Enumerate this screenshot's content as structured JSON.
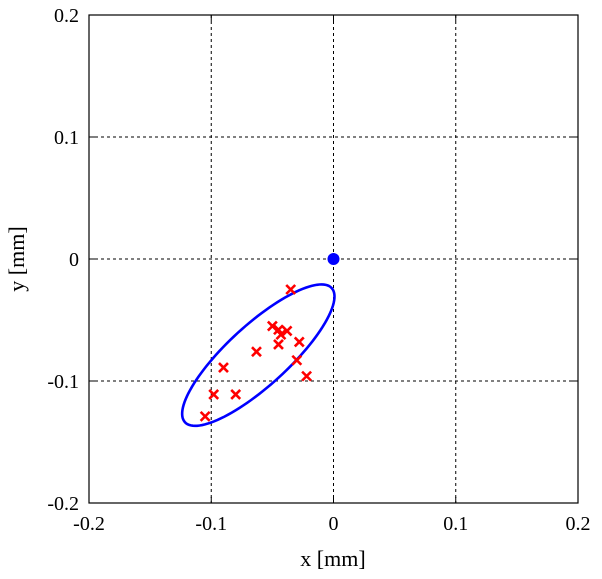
{
  "chart_data": {
    "type": "scatter",
    "xlabel": "x [mm]",
    "ylabel": "y [mm]",
    "xlim": [
      -0.2,
      0.2
    ],
    "ylim": [
      -0.2,
      0.2
    ],
    "grid": true,
    "x_ticks": [
      "-0.2",
      "-0.1",
      "0",
      "0.1",
      "0.2"
    ],
    "y_ticks": [
      "-0.2",
      "-0.1",
      "0",
      "0.1",
      "0.2"
    ],
    "series": [
      {
        "marker": "x",
        "color": "#ff0000",
        "points": [
          {
            "x": -0.035,
            "y": -0.025
          },
          {
            "x": -0.05,
            "y": -0.055
          },
          {
            "x": -0.045,
            "y": -0.058
          },
          {
            "x": -0.043,
            "y": -0.062
          },
          {
            "x": -0.038,
            "y": -0.059
          },
          {
            "x": -0.063,
            "y": -0.076
          },
          {
            "x": -0.045,
            "y": -0.07
          },
          {
            "x": -0.028,
            "y": -0.068
          },
          {
            "x": -0.03,
            "y": -0.083
          },
          {
            "x": -0.022,
            "y": -0.096
          },
          {
            "x": -0.09,
            "y": -0.089
          },
          {
            "x": -0.098,
            "y": -0.111
          },
          {
            "x": -0.08,
            "y": -0.111
          },
          {
            "x": -0.105,
            "y": -0.129
          }
        ]
      },
      {
        "marker": "filled-circle",
        "color": "#0000ff",
        "points": [
          {
            "x": 0.0,
            "y": 0.0
          }
        ]
      }
    ],
    "ellipse": {
      "color": "#0000ff",
      "center": [
        -0.0615,
        -0.0788
      ],
      "semi_major": 0.0814,
      "semi_minor": 0.0248,
      "angle_deg": 42.5
    }
  }
}
